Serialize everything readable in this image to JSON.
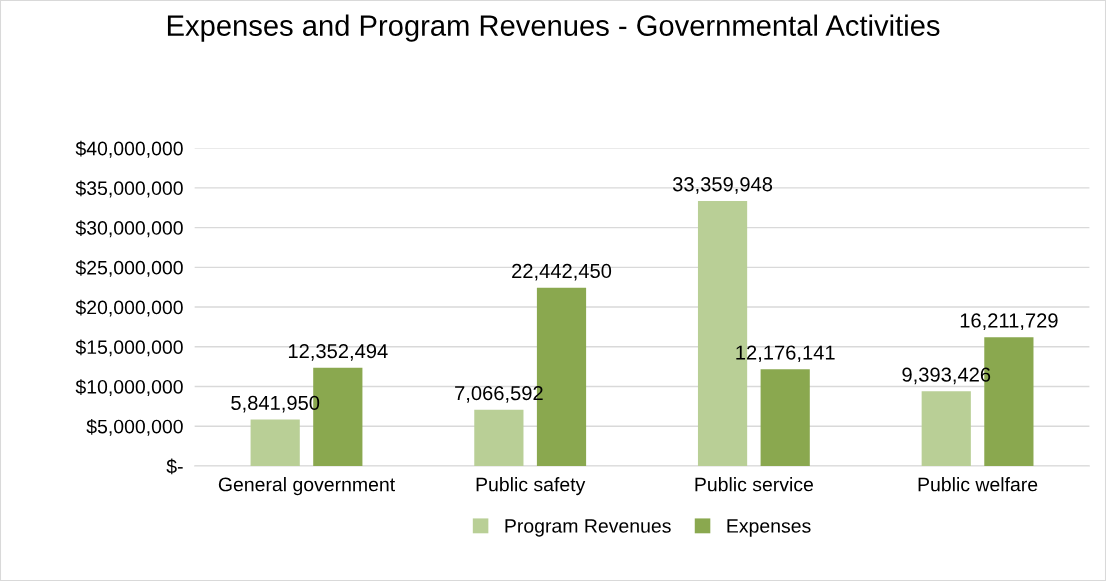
{
  "chart_data": {
    "type": "bar",
    "title": "Expenses and Program Revenues - Governmental Activities",
    "categories": [
      "General government",
      "Public safety",
      "Public service",
      "Public welfare"
    ],
    "series": [
      {
        "name": "Program Revenues",
        "color": "#b9cf96",
        "values": [
          5841950,
          7066592,
          33359948,
          9393426
        ],
        "value_labels": [
          "5,841,950",
          "7,066,592",
          "33,359,948",
          "9,393,426"
        ]
      },
      {
        "name": "Expenses",
        "color": "#8aa84f",
        "values": [
          12352494,
          22442450,
          12176141,
          16211729
        ],
        "value_labels": [
          "12,352,494",
          "22,442,450",
          "12,176,141",
          "16,211,729"
        ]
      }
    ],
    "ylim": [
      0,
      40000000
    ],
    "yticks": [
      {
        "value": 0,
        "label": "$-"
      },
      {
        "value": 5000000,
        "label": "$5,000,000"
      },
      {
        "value": 10000000,
        "label": "$10,000,000"
      },
      {
        "value": 15000000,
        "label": "$15,000,000"
      },
      {
        "value": 20000000,
        "label": "$20,000,000"
      },
      {
        "value": 25000000,
        "label": "$25,000,000"
      },
      {
        "value": 30000000,
        "label": "$30,000,000"
      },
      {
        "value": 35000000,
        "label": "$35,000,000"
      },
      {
        "value": 40000000,
        "label": "$40,000,000"
      }
    ],
    "grid": "y",
    "legend": "bottom"
  }
}
